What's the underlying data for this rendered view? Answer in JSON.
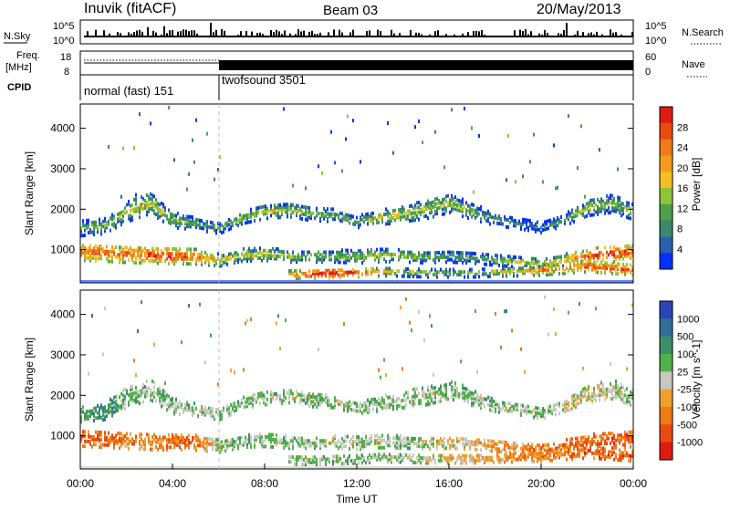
{
  "header": {
    "station": "Inuvik (fitACF)",
    "beam": "Beam 03",
    "date": "20/May/2013"
  },
  "summary_labels": {
    "nsky": "N.Sky",
    "nsearch": "N.Search",
    "freq": "Freq.",
    "freq_unit": "[MHz]",
    "nave": "Nave",
    "cpid": "CPID",
    "left_ticks_top": [
      "10^5",
      "10^0"
    ],
    "right_ticks_top": [
      "10^5",
      "10^0"
    ],
    "left_ticks_freq": [
      "18",
      "8"
    ],
    "right_ticks_nave": [
      "60",
      "0"
    ]
  },
  "cpid_modes": [
    {
      "label": "normal (fast) 151",
      "start_hour": 0,
      "end_hour": 6
    },
    {
      "label": "twofsound 3501",
      "start_hour": 6,
      "end_hour": 24
    }
  ],
  "chart_data": [
    {
      "type": "heatmap",
      "title": "Power",
      "ylabel": "Slant Range [km]",
      "xlabel": "",
      "ylim": [
        180,
        4600
      ],
      "xlim": [
        0,
        24
      ],
      "yticks": [
        "1000",
        "2000",
        "3000",
        "4000"
      ],
      "colorbar_label": "Power [dB]",
      "colorbar_ticks": [
        "4",
        "8",
        "12",
        "16",
        "20",
        "24",
        "28"
      ],
      "colorbar_colors": [
        "#0033ff",
        "#2a5fb0",
        "#3a8a6a",
        "#4fa04c",
        "#8fc43a",
        "#f2c020",
        "#f39c1a",
        "#f07a15",
        "#ea4a12",
        "#e01a10"
      ],
      "bands": [
        {
          "name": "near",
          "x": [
            0,
            1,
            2,
            3,
            4,
            5,
            6,
            7,
            8,
            9,
            10,
            11,
            12,
            13,
            14,
            15,
            16,
            17,
            18,
            19,
            20,
            21,
            22,
            23,
            24
          ],
          "center": [
            900,
            880,
            850,
            820,
            800,
            780,
            700,
            820,
            850,
            800,
            800,
            800,
            780,
            820,
            800,
            780,
            800,
            760,
            700,
            650,
            600,
            700,
            800,
            850,
            900
          ],
          "width": [
            400,
            420,
            420,
            400,
            380,
            360,
            300,
            300,
            320,
            300,
            300,
            300,
            320,
            320,
            300,
            300,
            300,
            280,
            260,
            260,
            260,
            300,
            350,
            400,
            420
          ],
          "level": [
            0.85,
            0.85,
            0.8,
            0.88,
            0.9,
            0.8,
            0.6,
            0.55,
            0.55,
            0.5,
            0.45,
            0.45,
            0.5,
            0.55,
            0.5,
            0.45,
            0.4,
            0.4,
            0.45,
            0.5,
            0.55,
            0.65,
            0.85,
            0.9,
            0.85
          ]
        },
        {
          "name": "far",
          "x": [
            0,
            1,
            2,
            3,
            4,
            5,
            6,
            7,
            8,
            9,
            10,
            11,
            12,
            13,
            14,
            15,
            16,
            17,
            18,
            19,
            20,
            21,
            22,
            23,
            24
          ],
          "center": [
            1500,
            1550,
            1900,
            2100,
            1700,
            1600,
            1500,
            1750,
            1900,
            1950,
            1850,
            1800,
            1650,
            1750,
            1850,
            1950,
            2100,
            1900,
            1700,
            1600,
            1500,
            1700,
            2000,
            2100,
            1900
          ],
          "width": [
            400,
            400,
            500,
            500,
            400,
            300,
            300,
            300,
            350,
            350,
            350,
            300,
            300,
            350,
            400,
            450,
            450,
            400,
            300,
            250,
            250,
            300,
            400,
            450,
            400
          ],
          "level": [
            0.4,
            0.45,
            0.5,
            0.55,
            0.45,
            0.4,
            0.35,
            0.45,
            0.5,
            0.5,
            0.45,
            0.4,
            0.45,
            0.55,
            0.55,
            0.5,
            0.5,
            0.45,
            0.35,
            0.3,
            0.3,
            0.4,
            0.5,
            0.45,
            0.4
          ]
        },
        {
          "name": "low",
          "x": [
            9,
            10,
            11,
            12,
            13,
            14,
            15,
            16,
            17,
            18,
            19,
            20,
            21,
            22,
            23,
            24
          ],
          "center": [
            350,
            350,
            380,
            400,
            420,
            400,
            380,
            380,
            380,
            400,
            420,
            450,
            500,
            550,
            500,
            450
          ],
          "width": [
            200,
            220,
            240,
            240,
            220,
            200,
            200,
            200,
            200,
            200,
            220,
            240,
            260,
            280,
            260,
            240
          ],
          "level": [
            0.7,
            0.95,
            0.95,
            0.85,
            0.6,
            0.5,
            0.45,
            0.4,
            0.45,
            0.55,
            0.6,
            0.7,
            0.8,
            0.85,
            0.9,
            0.85
          ]
        }
      ]
    },
    {
      "type": "heatmap",
      "title": "Velocity",
      "ylabel": "Slant Range [km]",
      "xlabel": "Time UT",
      "ylim": [
        180,
        4600
      ],
      "xlim": [
        0,
        24
      ],
      "xticks": [
        "00:00",
        "04:00",
        "08:00",
        "12:00",
        "16:00",
        "20:00",
        "00:00"
      ],
      "yticks": [
        "1000",
        "2000",
        "3000",
        "4000"
      ],
      "colorbar_label": "Velocity [m s^-1]",
      "colorbar_ticks": [
        "1000",
        "500",
        "100",
        "25",
        "-25",
        "-100",
        "-500",
        "-1000"
      ],
      "colorbar_colors": [
        "#2a45b8",
        "#2f6f9a",
        "#3d8f6a",
        "#52b04a",
        "#c8c8c0",
        "#f0a030",
        "#f07a15",
        "#ea4a12",
        "#e01a10"
      ],
      "bands": [
        {
          "name": "near",
          "x": [
            0,
            1,
            2,
            3,
            4,
            5,
            6,
            7,
            8,
            9,
            10,
            11,
            12,
            13,
            14,
            15,
            16,
            17,
            18,
            19,
            20,
            21,
            22,
            23,
            24
          ],
          "center": [
            900,
            880,
            850,
            820,
            800,
            780,
            700,
            820,
            850,
            800,
            800,
            800,
            780,
            820,
            800,
            780,
            800,
            760,
            700,
            650,
            600,
            700,
            800,
            850,
            900
          ],
          "width": [
            400,
            420,
            420,
            400,
            380,
            360,
            300,
            300,
            320,
            300,
            300,
            300,
            320,
            320,
            300,
            300,
            300,
            280,
            260,
            260,
            260,
            300,
            350,
            400,
            420
          ],
          "level": [
            0.75,
            0.8,
            0.7,
            0.72,
            0.75,
            0.75,
            0.5,
            0.4,
            0.45,
            0.45,
            0.45,
            0.5,
            0.45,
            0.5,
            0.45,
            0.5,
            0.55,
            0.6,
            0.65,
            0.7,
            0.72,
            0.75,
            0.8,
            0.82,
            0.8
          ]
        },
        {
          "name": "far",
          "x": [
            0,
            1,
            2,
            3,
            4,
            5,
            6,
            7,
            8,
            9,
            10,
            11,
            12,
            13,
            14,
            15,
            16,
            17,
            18,
            19,
            20,
            21,
            22,
            23,
            24
          ],
          "center": [
            1500,
            1550,
            1900,
            2100,
            1700,
            1600,
            1500,
            1750,
            1900,
            1950,
            1850,
            1800,
            1650,
            1750,
            1850,
            1950,
            2100,
            1900,
            1700,
            1600,
            1500,
            1700,
            2000,
            2100,
            1900
          ],
          "width": [
            400,
            400,
            500,
            500,
            400,
            300,
            300,
            300,
            350,
            350,
            350,
            300,
            300,
            350,
            400,
            450,
            450,
            400,
            300,
            250,
            250,
            300,
            400,
            450,
            400
          ],
          "level": [
            0.35,
            0.3,
            0.4,
            0.45,
            0.45,
            0.45,
            0.45,
            0.45,
            0.45,
            0.48,
            0.45,
            0.45,
            0.45,
            0.45,
            0.45,
            0.45,
            0.45,
            0.45,
            0.45,
            0.45,
            0.45,
            0.5,
            0.55,
            0.5,
            0.45
          ]
        },
        {
          "name": "low",
          "x": [
            9,
            10,
            11,
            12,
            13,
            14,
            15,
            16,
            17,
            18,
            19,
            20,
            21,
            22,
            23,
            24
          ],
          "center": [
            350,
            350,
            380,
            400,
            420,
            400,
            380,
            380,
            380,
            400,
            420,
            450,
            500,
            550,
            500,
            450
          ],
          "width": [
            200,
            220,
            240,
            240,
            220,
            200,
            200,
            200,
            200,
            200,
            220,
            240,
            260,
            280,
            260,
            240
          ],
          "level": [
            0.45,
            0.45,
            0.45,
            0.45,
            0.45,
            0.45,
            0.5,
            0.55,
            0.6,
            0.65,
            0.7,
            0.7,
            0.75,
            0.8,
            0.82,
            0.8
          ]
        }
      ]
    }
  ]
}
